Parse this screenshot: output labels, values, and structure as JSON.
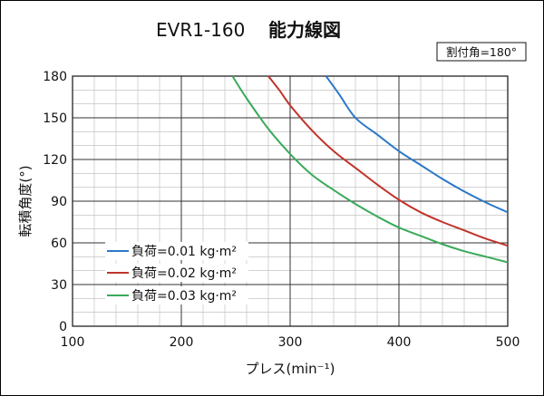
{
  "title": {
    "model": "EVR1-160",
    "name": "能力線図"
  },
  "badge": "割付角=180°",
  "chart_data": {
    "type": "line",
    "xlabel": "プレス(min⁻¹)",
    "ylabel": "転積角度(°)",
    "xlim": [
      100,
      500
    ],
    "ylim": [
      0,
      180
    ],
    "xticks": [
      "100",
      "200",
      "300",
      "400",
      "500"
    ],
    "yticks": [
      "0",
      "30",
      "60",
      "90",
      "120",
      "150",
      "180"
    ],
    "grid": true,
    "legend_position": "lower-left",
    "series": [
      {
        "name": "負荷=0.01 kg·m²",
        "color": "#2a78c8",
        "x": [
          333,
          345,
          360,
          380,
          400,
          420,
          440,
          460,
          480,
          500
        ],
        "y": [
          180,
          167,
          150,
          138,
          126,
          116,
          106,
          97,
          89,
          82
        ]
      },
      {
        "name": "負荷=0.02 kg·m²",
        "color": "#c0342b",
        "x": [
          280,
          290,
          300,
          320,
          340,
          360,
          380,
          400,
          420,
          440,
          460,
          480,
          500
        ],
        "y": [
          180,
          170,
          159,
          141,
          126,
          114,
          102,
          91,
          82,
          75,
          69,
          63,
          58
        ]
      },
      {
        "name": "負荷=0.03 kg·m²",
        "color": "#3aaa5a",
        "x": [
          247,
          260,
          280,
          300,
          320,
          340,
          360,
          380,
          400,
          420,
          440,
          460,
          480,
          500
        ],
        "y": [
          180,
          164,
          142,
          124,
          109,
          98,
          88,
          79,
          71,
          65,
          59,
          54,
          50,
          46
        ]
      }
    ]
  }
}
